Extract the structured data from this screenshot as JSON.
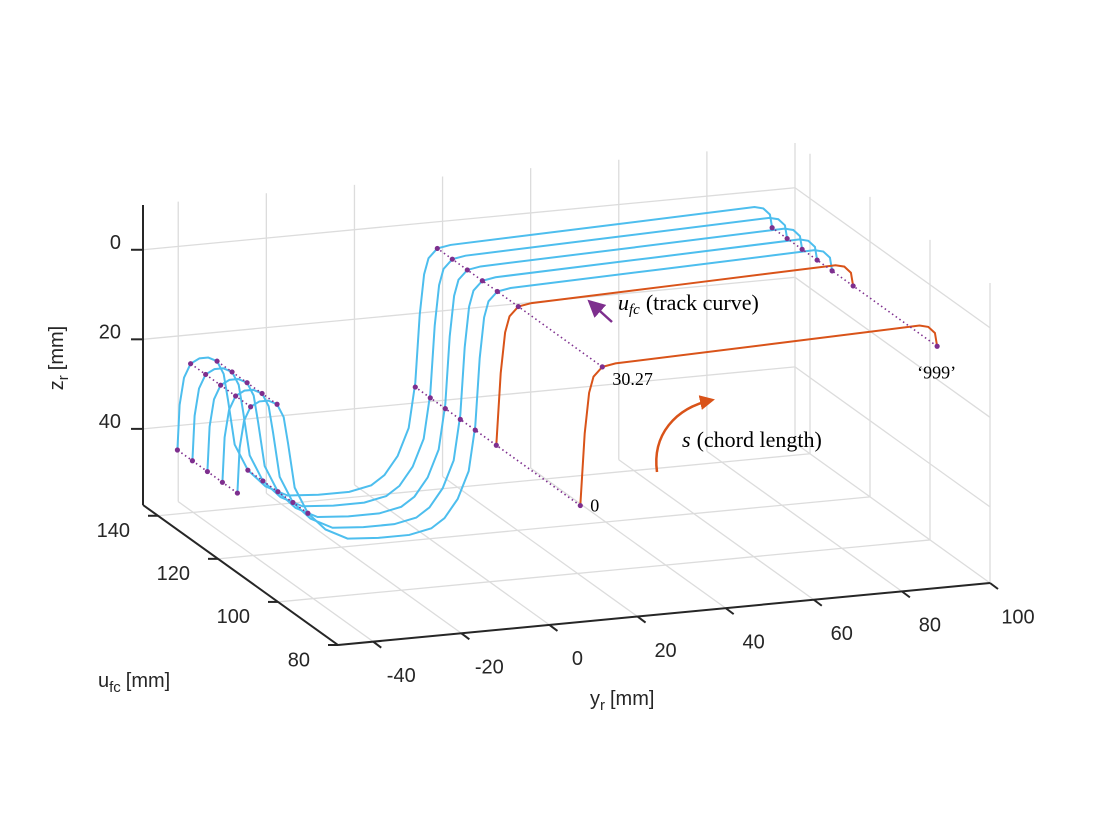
{
  "chart_data": {
    "type": "line3d",
    "xlabel": {
      "symbol": "y",
      "subscript": "r",
      "unit": "[mm]"
    },
    "ylabel": {
      "symbol": "u",
      "subscript": "fc",
      "unit": "[mm]"
    },
    "zlabel": {
      "symbol": "z",
      "subscript": "r",
      "unit": "[mm]"
    },
    "xlim": [
      -48,
      100
    ],
    "xticks": [
      -40,
      -20,
      0,
      20,
      40,
      60,
      80,
      100
    ],
    "ylim": [
      80,
      145
    ],
    "yticks": [
      80,
      100,
      120,
      140
    ],
    "zlim": [
      -10,
      57
    ],
    "zticks": [
      0,
      20,
      40
    ],
    "z_reverse": true,
    "grid": true,
    "series": [
      {
        "color": "#4dbeee",
        "u_fc": 135,
        "y_r": [
          -47,
          -46.5,
          -45.5,
          -44,
          -42,
          -40,
          -38,
          -36.5,
          -35.5,
          -34,
          -31,
          -27,
          -22,
          -15,
          -8,
          -3,
          0,
          3,
          5.5,
          7,
          8,
          9,
          10,
          12,
          15,
          50,
          84,
          86,
          87.5,
          88
        ],
        "z_r": [
          40,
          30,
          24,
          21,
          20,
          20,
          21,
          24,
          30,
          40,
          46,
          50,
          52.5,
          53,
          53,
          52,
          50,
          46,
          40,
          30,
          15,
          6,
          2.5,
          0.5,
          0,
          -1,
          -2,
          -1.5,
          0,
          3
        ]
      },
      {
        "color": "#4dbeee",
        "u_fc": 130,
        "y_r": [
          -47,
          -46.5,
          -45.5,
          -44,
          -42,
          -40,
          -38,
          -36.5,
          -35.5,
          -34,
          -31,
          -27,
          -22,
          -15,
          -8,
          -3,
          0,
          3,
          5.5,
          7,
          8,
          9,
          10,
          12,
          15,
          50,
          84,
          86,
          87.5,
          88
        ],
        "z_r": [
          40,
          30,
          24,
          21,
          20,
          20,
          21,
          24,
          30,
          40,
          46,
          50,
          52.5,
          53,
          53,
          52,
          50,
          46,
          40,
          30,
          15,
          6,
          2.5,
          0.5,
          0,
          -1,
          -2,
          -1.5,
          0,
          3
        ]
      },
      {
        "color": "#4dbeee",
        "u_fc": 125,
        "y_r": [
          -47,
          -46.5,
          -45.5,
          -44,
          -42,
          -40,
          -38,
          -36.5,
          -35.5,
          -34,
          -31,
          -27,
          -22,
          -15,
          -8,
          -3,
          0,
          3,
          5.5,
          7,
          8,
          9,
          10,
          12,
          15,
          50,
          84,
          86,
          87.5,
          88
        ],
        "z_r": [
          40,
          30,
          24,
          21,
          20,
          20,
          21,
          24,
          30,
          40,
          46,
          50,
          52.5,
          53,
          53,
          52,
          50,
          46,
          40,
          30,
          15,
          6,
          2.5,
          0.5,
          0,
          -1,
          -2,
          -1.5,
          0,
          3
        ]
      },
      {
        "color": "#4dbeee",
        "u_fc": 120,
        "y_r": [
          -47,
          -46.5,
          -45.5,
          -44,
          -42,
          -40,
          -38,
          -36.5,
          -35.5,
          -34,
          -31,
          -27,
          -22,
          -15,
          -8,
          -3,
          0,
          3,
          5.5,
          7,
          8,
          9,
          10,
          12,
          15,
          50,
          84,
          86,
          87.5,
          88
        ],
        "z_r": [
          40,
          30,
          24,
          21,
          20,
          20,
          21,
          24,
          30,
          40,
          46,
          50,
          52.5,
          53,
          53,
          52,
          50,
          46,
          40,
          30,
          15,
          6,
          2.5,
          0.5,
          0,
          -1,
          -2,
          -1.5,
          0,
          3
        ]
      },
      {
        "color": "#4dbeee",
        "u_fc": 115,
        "y_r": [
          -47,
          -46.5,
          -45.5,
          -44,
          -42,
          -40,
          -38,
          -36.5,
          -35.5,
          -34,
          -31,
          -27,
          -22,
          -15,
          -8,
          -3,
          0,
          3,
          5.5,
          7,
          8,
          9,
          10,
          12,
          15,
          50,
          84,
          86,
          87.5,
          88
        ],
        "z_r": [
          40,
          30,
          24,
          21,
          20,
          20,
          21,
          24,
          30,
          40,
          46,
          50,
          52.5,
          53,
          53,
          52,
          50,
          46,
          40,
          30,
          15,
          6,
          2.5,
          0.5,
          0,
          -1,
          -2,
          -1.5,
          0,
          3
        ]
      },
      {
        "color": "#d95319",
        "u_fc": 108,
        "y_r": [
          7,
          8,
          9,
          10,
          12,
          15,
          50,
          84,
          86,
          87.5,
          88
        ],
        "z_r": [
          31,
          15,
          6,
          2.5,
          0.5,
          0,
          -1,
          -2,
          -1.5,
          0,
          3
        ]
      },
      {
        "color": "#d95319",
        "u_fc": 80,
        "y_r": [
          7,
          8,
          9,
          10,
          12,
          15,
          50,
          84,
          86,
          87.5,
          88
        ],
        "z_r": [
          31,
          15,
          6,
          2.5,
          0.5,
          0,
          -1,
          -2,
          -1.5,
          0,
          3
        ]
      }
    ],
    "guides": [
      {
        "color": "#7e2f8e",
        "y_r": -47,
        "z_r": 40,
        "u_fc": [
          115,
          120,
          125,
          130,
          135
        ]
      },
      {
        "color": "#7e2f8e",
        "y_r": -44,
        "z_r": 21,
        "u_fc": [
          115,
          120,
          125,
          130,
          135
        ]
      },
      {
        "color": "#7e2f8e",
        "y_r": -38,
        "z_r": 21,
        "u_fc": [
          115,
          120,
          125,
          130,
          135
        ]
      },
      {
        "color": "#7e2f8e",
        "y_r": -31,
        "z_r": 46,
        "u_fc": [
          115,
          120,
          125,
          130,
          135
        ]
      },
      {
        "color": "#7e2f8e",
        "y_r": 7,
        "z_r": 31,
        "u_fc": [
          80,
          108,
          115,
          120,
          125,
          130,
          135
        ]
      },
      {
        "color": "#7e2f8e",
        "y_r": 12,
        "z_r": 0.5,
        "u_fc": [
          80,
          108,
          115,
          120,
          125,
          130,
          135
        ]
      },
      {
        "color": "#7e2f8e",
        "y_r": 88,
        "z_r": 3,
        "u_fc": [
          80,
          108,
          115,
          120,
          125,
          130,
          135
        ]
      }
    ],
    "point_labels": [
      "0",
      "30.27",
      "‘999’"
    ],
    "arrow_u": {
      "symbol": "u",
      "subscript": "fc",
      "text": "(track curve)"
    },
    "arrow_s": {
      "symbol": "s",
      "text": "(chord length)"
    }
  }
}
